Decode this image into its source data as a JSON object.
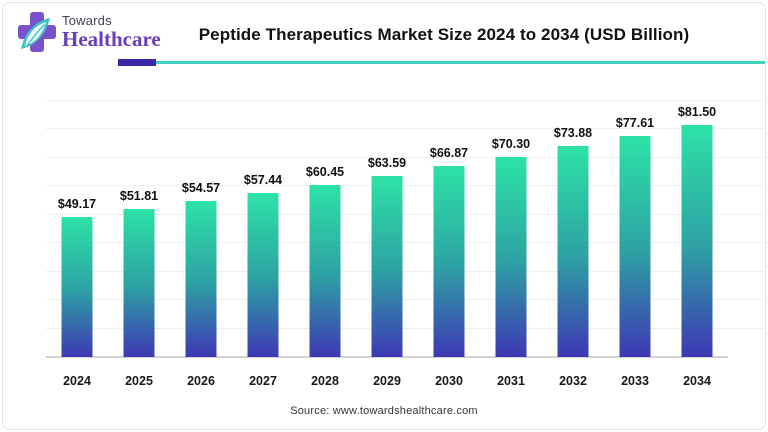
{
  "header": {
    "logo": {
      "line1": "Towards",
      "line2": "Healthcare"
    },
    "title": "Peptide Therapeutics Market Size 2024 to 2034 (USD Billion)"
  },
  "footer": {
    "source": "Source: www.towardshealthcare.com"
  },
  "chart_data": {
    "type": "bar",
    "title": "Peptide Therapeutics Market Size 2024 to 2034 (USD Billion)",
    "xlabel": "",
    "ylabel": "",
    "unit": "USD Billion",
    "categories": [
      "2024",
      "2025",
      "2026",
      "2027",
      "2028",
      "2029",
      "2030",
      "2031",
      "2032",
      "2033",
      "2034"
    ],
    "values": [
      49.17,
      51.81,
      54.57,
      57.44,
      60.45,
      63.59,
      66.87,
      70.3,
      73.88,
      77.61,
      81.5
    ],
    "value_labels": [
      "$49.17",
      "$51.81",
      "$54.57",
      "$57.44",
      "$60.45",
      "$63.59",
      "$66.87",
      "$70.30",
      "$73.88",
      "$77.61",
      "$81.50"
    ],
    "ylim": [
      0,
      90
    ],
    "gridline_step": 10,
    "grid": true,
    "legend": false,
    "bar_gradient": {
      "top": "#2de2a6",
      "mid": "#2da2a3",
      "bottom": "#3e38b4"
    }
  },
  "colors": {
    "divider_purple": "#3a28a6",
    "divider_teal": "#3fd2c1",
    "logo_cross": "#7a50cb",
    "logo_leaf": "#3cc3c6",
    "logo_healthcare_text": "#6b3eb8",
    "axis_line": "#d2d2d2",
    "gridline": "#efefef",
    "label_text": "#111111"
  }
}
